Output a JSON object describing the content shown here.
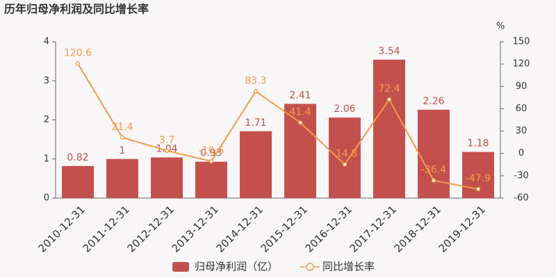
{
  "chart_data": {
    "type": "bar",
    "title": "历年归母净利润及同比增长率",
    "y2_label": "%",
    "categories": [
      "2010-12-31",
      "2011-12-31",
      "2012-12-31",
      "2013-12-31",
      "2014-12-31",
      "2015-12-31",
      "2016-12-31",
      "2017-12-31",
      "2018-12-31",
      "2019-12-31"
    ],
    "series": [
      {
        "name": "归母净利润（亿）",
        "type": "bar",
        "color": "#c4504e",
        "values": [
          0.82,
          1,
          1.04,
          0.93,
          1.71,
          2.41,
          2.06,
          3.54,
          2.26,
          1.18
        ]
      },
      {
        "name": "同比增长率",
        "type": "line",
        "axis": "y2",
        "color": "#f39a4a",
        "values": [
          120.6,
          21.4,
          3.7,
          -10.6,
          83.3,
          41.4,
          -14.8,
          72.4,
          -36.4,
          -47.9
        ]
      }
    ],
    "ylim": [
      0,
      4
    ],
    "yticks": [
      0,
      1,
      2,
      3,
      4
    ],
    "y2lim": [
      -60,
      150
    ],
    "y2ticks": [
      -60,
      -30,
      0,
      30,
      60,
      90,
      120,
      150
    ]
  }
}
